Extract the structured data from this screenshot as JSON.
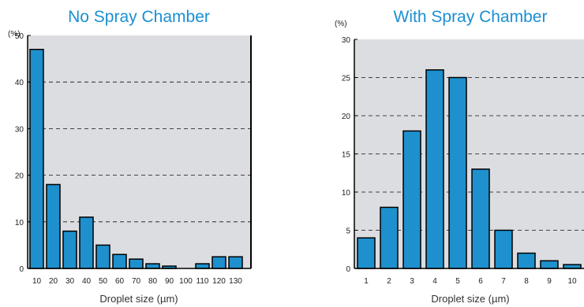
{
  "colors": {
    "bar": "#1e90cd",
    "plot_bg": "#dcdde0",
    "title": "#1a8fd2",
    "axis": "#000000"
  },
  "chart_data": [
    {
      "type": "bar",
      "title": "No Spray Chamber",
      "unit_label": "(%)",
      "xlabel": "Droplet size (µm)",
      "ylabel": "",
      "categories": [
        "10",
        "20",
        "30",
        "40",
        "50",
        "60",
        "70",
        "80",
        "90",
        "100",
        "110",
        "120",
        "130"
      ],
      "values": [
        47,
        18,
        8,
        11,
        5,
        3,
        2,
        1,
        0.5,
        0,
        1,
        2.5,
        2.5
      ],
      "ylim": [
        0,
        50
      ],
      "yticks": [
        "0",
        "10",
        "20",
        "30",
        "40",
        "50"
      ],
      "grid": "dashed horizontal"
    },
    {
      "type": "bar",
      "title": "With Spray Chamber",
      "unit_label": "(%)",
      "xlabel": "Droplet size (µm)",
      "ylabel": "",
      "categories": [
        "1",
        "2",
        "3",
        "4",
        "5",
        "6",
        "7",
        "8",
        "9",
        "10"
      ],
      "values": [
        4,
        8,
        18,
        26,
        25,
        13,
        5,
        2,
        1,
        0.5
      ],
      "ylim": [
        0,
        30
      ],
      "yticks": [
        "0",
        "5",
        "10",
        "15",
        "20",
        "25",
        "30"
      ],
      "grid": "dashed horizontal"
    }
  ]
}
